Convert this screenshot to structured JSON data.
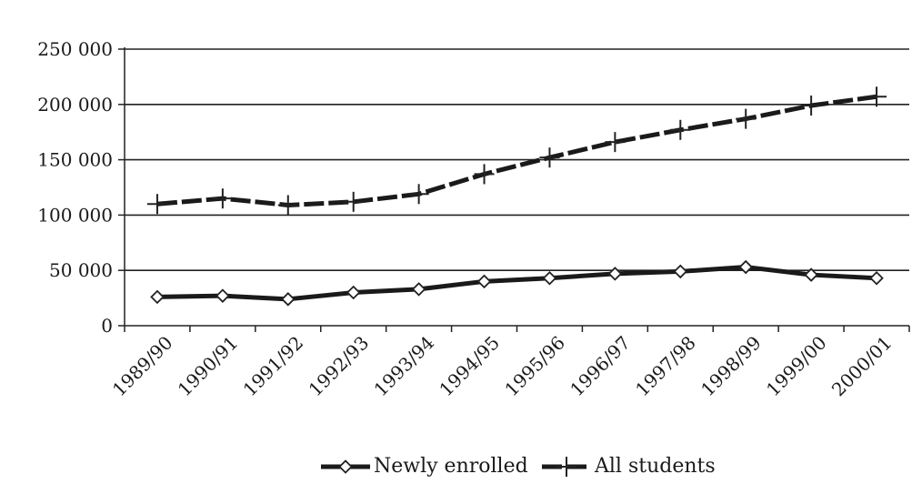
{
  "chart_data": {
    "type": "line",
    "title": "",
    "xlabel": "",
    "ylabel": "",
    "categories": [
      "1989/90",
      "1990/91",
      "1991/92",
      "1992/93",
      "1993/94",
      "1994/95",
      "1995/96",
      "1996/97",
      "1997/98",
      "1998/99",
      "1999/00",
      "2000/01"
    ],
    "ylim": [
      0,
      250000
    ],
    "yticks": [
      0,
      50000,
      100000,
      150000,
      200000,
      250000
    ],
    "ytick_labels": [
      "0",
      "50 000",
      "100 000",
      "150 000",
      "200 000",
      "250 000"
    ],
    "grid": true,
    "legend_position": "bottom",
    "series": [
      {
        "name": "Newly enrolled",
        "marker": "diamond",
        "values": [
          26000,
          27000,
          24000,
          30000,
          33000,
          40000,
          43000,
          47000,
          49000,
          53000,
          46000,
          43000
        ]
      },
      {
        "name": "All students",
        "marker": "plus",
        "values": [
          110000,
          115000,
          109000,
          112000,
          119000,
          137000,
          152000,
          166000,
          177000,
          187000,
          199000,
          207000
        ]
      }
    ]
  }
}
